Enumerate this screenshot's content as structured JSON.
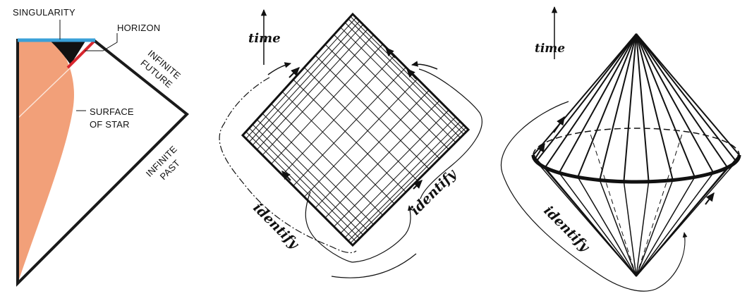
{
  "panel_a": {
    "singularity": "SINGULARITY",
    "horizon": "HORIZON",
    "infinite_future_1": "INFINITE",
    "infinite_future_2": "FUTURE",
    "surface_1": "SURFACE",
    "surface_2": "OF STAR",
    "infinite_past_1": "INFINITE",
    "infinite_past_2": "PAST",
    "colors": {
      "singularity": "#3aa0d8",
      "horizon": "#d8262e",
      "star": "#f2a079",
      "trapped": "#111111",
      "outline": "#1a1a1a"
    }
  },
  "panel_b": {
    "time": "time",
    "identify_left": "identify",
    "identify_right": "identify"
  },
  "panel_c": {
    "time": "time",
    "identify": "identify"
  }
}
